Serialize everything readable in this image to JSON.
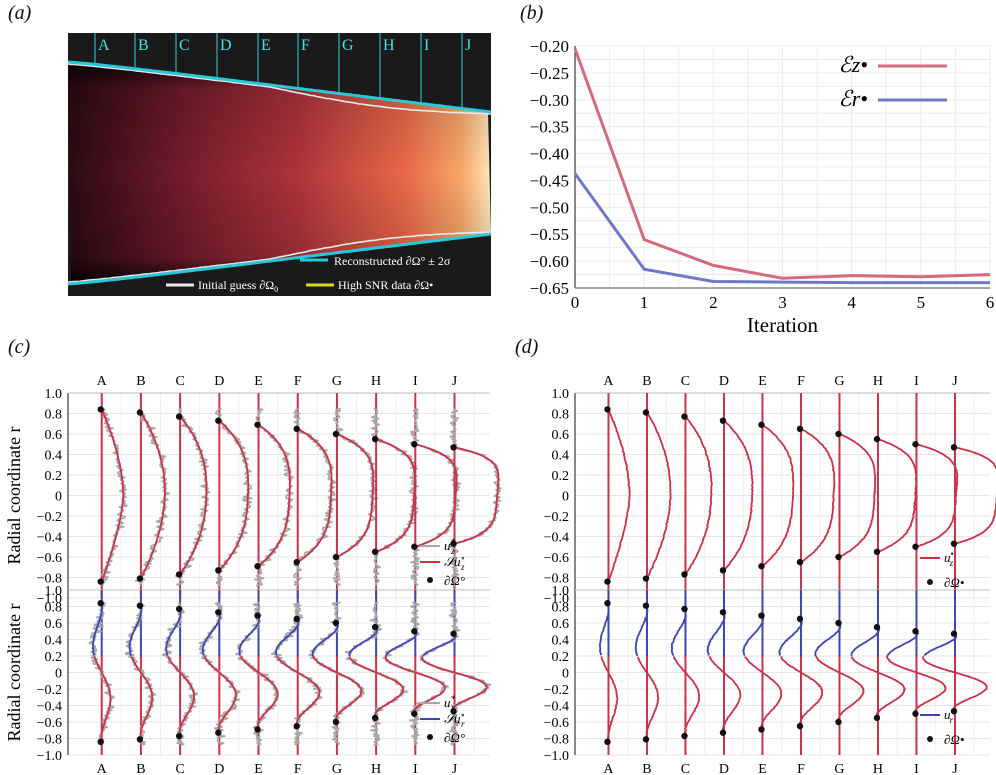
{
  "panels": {
    "a": "(a)",
    "b": "(b)",
    "c": "(c)",
    "d": "(d)"
  },
  "stations": [
    "A",
    "B",
    "C",
    "D",
    "E",
    "F",
    "G",
    "H",
    "I",
    "J"
  ],
  "panel_a": {
    "legend": {
      "reconstructed": "Reconstructed ∂Ω° ± 2σ",
      "initial": "Initial guess ∂Ω",
      "initial_sub": "0",
      "high_snr": "High SNR data ∂Ω•"
    },
    "colors": {
      "station_line": "#29e0e0",
      "cyan": "#28c8d8",
      "white": "#e8e8e8",
      "yellow": "#d8d820",
      "bg": "#1a1a1a"
    }
  },
  "chart_data": [
    {
      "type": "line",
      "panel": "b",
      "xlabel": "Iteration",
      "x": [
        0,
        1,
        2,
        3,
        4,
        5,
        6
      ],
      "xlim": [
        0,
        6
      ],
      "ylim": [
        -0.65,
        -0.2
      ],
      "yticks": [
        -0.2,
        -0.25,
        -0.3,
        -0.35,
        -0.4,
        -0.45,
        -0.5,
        -0.55,
        -0.6,
        -0.65
      ],
      "series": [
        {
          "name": "ℰz•",
          "color": "#d46a7e",
          "values": [
            -0.205,
            -0.56,
            -0.608,
            -0.632,
            -0.627,
            -0.629,
            -0.625
          ]
        },
        {
          "name": "ℰr•",
          "color": "#6f78c8",
          "values": [
            -0.437,
            -0.615,
            -0.638,
            -0.639,
            -0.64,
            -0.64,
            -0.64
          ]
        }
      ],
      "legend_position": "top-right",
      "grid": true
    },
    {
      "type": "line",
      "panel": "c-top",
      "ylabel": "Radial coordinate r",
      "categories": [
        "A",
        "B",
        "C",
        "D",
        "E",
        "F",
        "G",
        "H",
        "I",
        "J"
      ],
      "ylim": [
        -1.0,
        1.0
      ],
      "wall_r": [
        0.84,
        0.81,
        0.77,
        0.73,
        0.69,
        0.65,
        0.6,
        0.55,
        0.5,
        0.47
      ],
      "legend": {
        "noisy": "u",
        "noisy_sup": "*",
        "noisy_sub": "z",
        "fit": "𝒮u",
        "fit_sup": "∘",
        "fit_sub": "z",
        "points": "∂Ω°"
      }
    },
    {
      "type": "line",
      "panel": "c-bottom",
      "ylabel": "Radial coordinate r",
      "categories": [
        "A",
        "B",
        "C",
        "D",
        "E",
        "F",
        "G",
        "H",
        "I",
        "J"
      ],
      "ylim": [
        -1.0,
        1.0
      ],
      "wall_r": [
        0.84,
        0.81,
        0.77,
        0.73,
        0.69,
        0.65,
        0.6,
        0.55,
        0.5,
        0.47
      ],
      "legend": {
        "noisy": "u",
        "noisy_sup": "*",
        "noisy_sub": "r",
        "fit": "𝒮u",
        "fit_sup": "∘",
        "fit_sub": "r",
        "points": "∂Ω°"
      }
    },
    {
      "type": "line",
      "panel": "d-top",
      "categories": [
        "A",
        "B",
        "C",
        "D",
        "E",
        "F",
        "G",
        "H",
        "I",
        "J"
      ],
      "ylim": [
        -1.0,
        1.0
      ],
      "wall_r": [
        0.84,
        0.81,
        0.77,
        0.73,
        0.69,
        0.65,
        0.6,
        0.55,
        0.5,
        0.47
      ],
      "legend": {
        "line": "u",
        "line_sup": "•",
        "line_sub": "z",
        "points": "∂Ω•"
      }
    },
    {
      "type": "line",
      "panel": "d-bottom",
      "categories": [
        "A",
        "B",
        "C",
        "D",
        "E",
        "F",
        "G",
        "H",
        "I",
        "J"
      ],
      "ylim": [
        -1.0,
        1.0
      ],
      "wall_r": [
        0.84,
        0.81,
        0.77,
        0.73,
        0.69,
        0.65,
        0.6,
        0.55,
        0.5,
        0.47
      ],
      "legend": {
        "line": "u",
        "line_sup": "•",
        "line_sub": "r",
        "points": "∂Ω•"
      }
    }
  ],
  "tick_labels": [
    "1.0",
    "0.8",
    "0.6",
    "0.4",
    "0.2",
    "0",
    "−0.2",
    "−0.4",
    "−0.6",
    "−0.8",
    "−1.0"
  ],
  "colors": {
    "red": "#c8324a",
    "blue": "#3d46b0",
    "grey": "#a8a8a8",
    "black": "#111111"
  }
}
